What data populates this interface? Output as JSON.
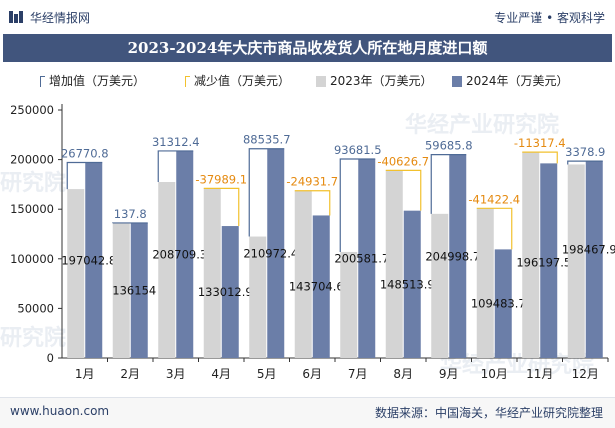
{
  "header": {
    "brand": "华经情报网",
    "tagline": "专业严谨 • 客观科学",
    "title": "2023-2024年大庆市商品收发货人所在地月度进口额"
  },
  "watermarks": [
    "华经产业研究院",
    "华经产业研究院",
    "研究院",
    "研究院"
  ],
  "footer": {
    "site": "www.huaon.com",
    "source": "数据来源：中国海关，华经产业研究院整理"
  },
  "colors": {
    "title_bg": "#41557d",
    "bar_2023": "#d4d4d4",
    "bar_2024": "#6b7ea8",
    "increase": "#4f6b96",
    "decrease": "#f2c12e",
    "label_increase": "#4f6b96",
    "label_decrease": "#e58a10"
  },
  "chart_data": {
    "type": "bar",
    "title": "2023-2024年大庆市商品收发货人所在地月度进口额",
    "categories": [
      "1月",
      "2月",
      "3月",
      "4月",
      "5月",
      "6月",
      "7月",
      "8月",
      "9月",
      "10月",
      "11月",
      "12月"
    ],
    "series": [
      {
        "name": "2023年（万美元）",
        "values": [
          170272,
          136016.2,
          177396.9,
          171002,
          122436.7,
          168636.3,
          106900.2,
          189140.6,
          145313,
          150906.3,
          207515.4,
          195089.1
        ]
      },
      {
        "name": "2024年（万美元）",
        "values": [
          197042.8,
          136154,
          208709.3,
          133012.9,
          210972.4,
          143704.6,
          200581.7,
          148513.9,
          204998.7,
          109483.7,
          196197.5,
          198467.9
        ]
      }
    ],
    "difference": {
      "increase_name": "增加值（万美元）",
      "decrease_name": "减少值（万美元）",
      "values": [
        26770.8,
        137.8,
        31312.4,
        -37989.1,
        88535.7,
        -24931.7,
        93681.5,
        -40626.7,
        59685.8,
        -41422.4,
        -11317.4,
        3378.9
      ],
      "labels": [
        "26770.8",
        "137.8",
        "31312.4",
        "-37989.1",
        "88535.7",
        "-24931.7",
        "93681.5",
        "-40626.7",
        "59685.8",
        "-41422.4",
        "-11317.4",
        "3378.9"
      ]
    },
    "value_labels_2024": [
      "197042.8",
      "136154",
      "208709.3",
      "133012.9",
      "210972.4",
      "143704.6",
      "200581.7",
      "148513.9",
      "204998.7",
      "109483.7",
      "196197.5",
      "198467.9"
    ],
    "y_ticks": [
      0,
      50000,
      100000,
      150000,
      200000,
      250000
    ],
    "ylim": [
      0,
      250000
    ],
    "legend": [
      "增加值（万美元）",
      "减少值（万美元）",
      "2023年（万美元）",
      "2024年（万美元）"
    ],
    "legend_position": "top",
    "grid": false
  }
}
